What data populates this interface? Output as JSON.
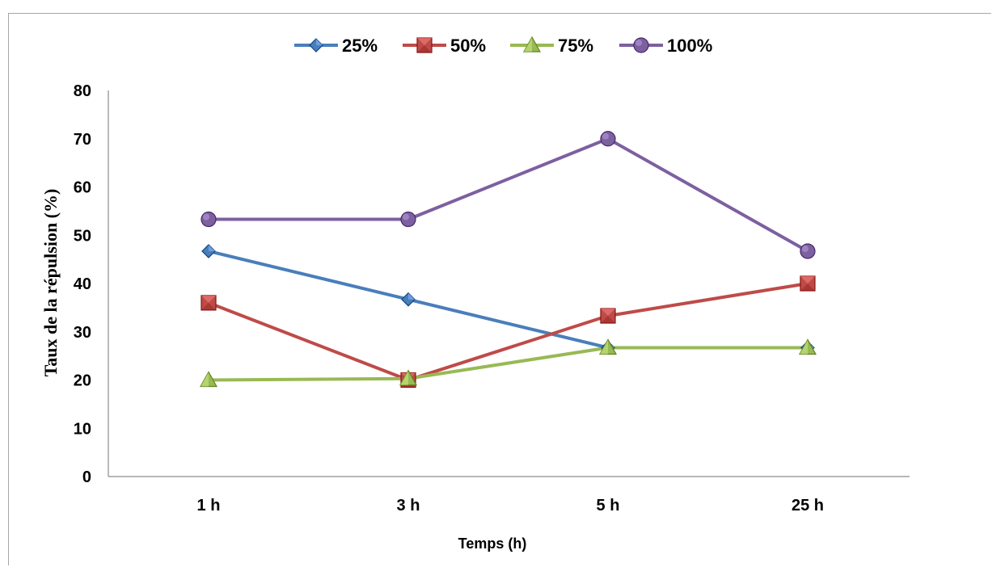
{
  "chart_data": {
    "type": "line",
    "categories": [
      "1 h",
      "3 h",
      "5 h",
      "25 h"
    ],
    "series": [
      {
        "name": "25%",
        "values": [
          46.7,
          36.7,
          26.7,
          26.7
        ],
        "color": "#4a7ebb",
        "marker": "diamond"
      },
      {
        "name": "50%",
        "values": [
          36.0,
          20.0,
          33.3,
          40.0
        ],
        "color": "#be4b48",
        "marker": "square"
      },
      {
        "name": "75%",
        "values": [
          20.0,
          20.3,
          26.7,
          26.7
        ],
        "color": "#98b954",
        "marker": "triangle"
      },
      {
        "name": "100%",
        "values": [
          53.3,
          53.3,
          70.0,
          46.7
        ],
        "color": "#7d60a0",
        "marker": "circle"
      }
    ],
    "xlabel": "Temps (h)",
    "ylabel": "Taux de la répulsion (%)",
    "ylim": [
      0,
      80
    ],
    "yticks": [
      0,
      10,
      20,
      30,
      40,
      50,
      60,
      70,
      80
    ],
    "grid": false,
    "legend": "top"
  }
}
